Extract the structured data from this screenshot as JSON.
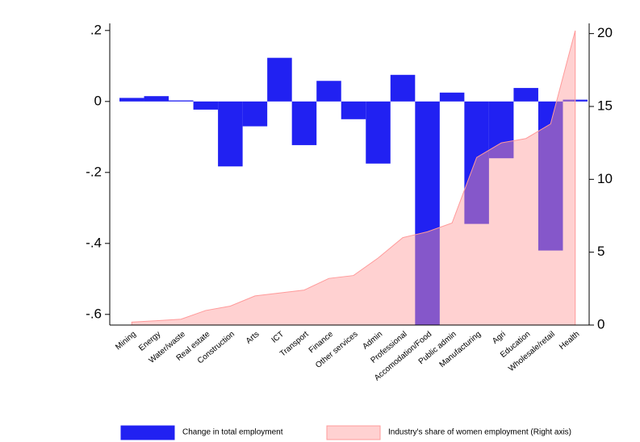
{
  "chart_data": {
    "type": "bar",
    "categories": [
      "Mining",
      "Energy",
      "Water/waste",
      "Real estate",
      "Construction",
      "Arts",
      "ICT",
      "Transport",
      "Finance",
      "Other services",
      "Admin",
      "Professional",
      "Accomodation/Food",
      "Public admin",
      "Manufacturing",
      "Agri",
      "Education",
      "Wholesale/retail",
      "Health"
    ],
    "series": [
      {
        "name": "Change in total employment",
        "type": "bar",
        "color": "#2121f2",
        "values": [
          0.01,
          0.015,
          0.003,
          -0.023,
          -0.183,
          -0.07,
          0.123,
          -0.123,
          0.058,
          -0.05,
          -0.175,
          0.075,
          -0.63,
          0.025,
          -0.345,
          -0.16,
          0.038,
          -0.42,
          0.005
        ]
      },
      {
        "name": "Industry's share of women employment (Right axis)",
        "type": "area",
        "axis": "y2",
        "color": "#ff9a9a",
        "values": [
          0.2,
          0.3,
          0.4,
          1.0,
          1.3,
          2.0,
          2.2,
          2.4,
          3.2,
          3.4,
          4.6,
          6.0,
          6.4,
          7.0,
          11.5,
          12.5,
          12.8,
          13.8,
          20.2
        ]
      }
    ],
    "ylim": [
      -0.63,
      0.22
    ],
    "yticks": [
      {
        "value": 0.2,
        "label": ".2"
      },
      0,
      {
        "value": -0.2,
        "label": "-.2"
      },
      {
        "value": -0.4,
        "label": "-.4"
      },
      {
        "value": -0.6,
        "label": "-.6"
      }
    ],
    "y2lim": [
      0,
      20.7
    ],
    "y2ticks": [
      0,
      5,
      10,
      15,
      20
    ],
    "legend": "bottom"
  }
}
